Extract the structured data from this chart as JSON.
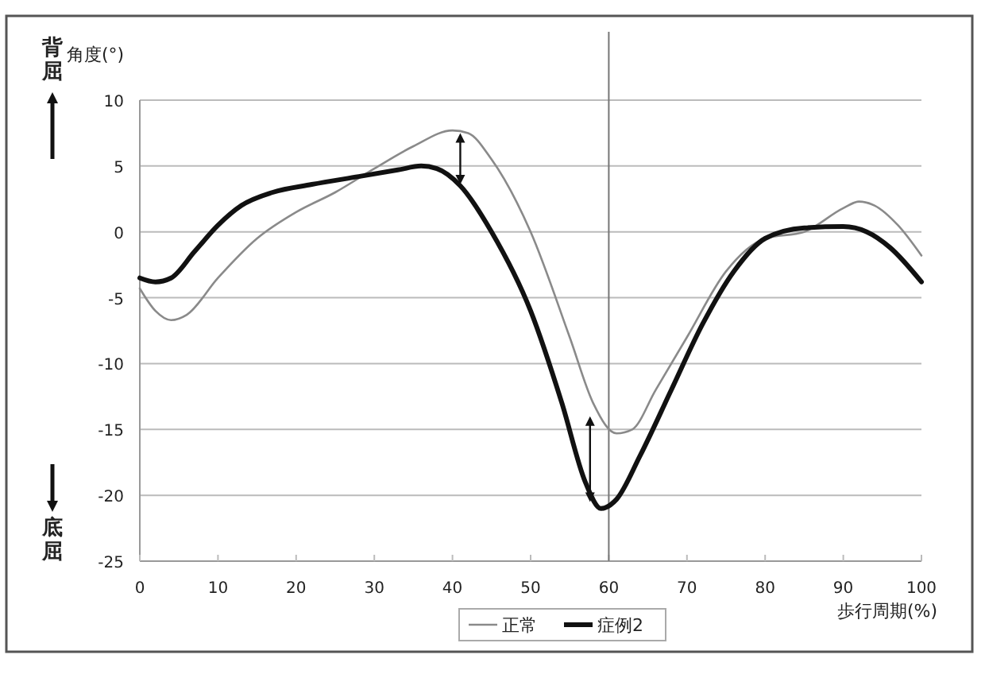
{
  "chart_data": {
    "type": "line",
    "xlabel": "歩行周期(%)",
    "ylabel": "角度(°)",
    "xlim": [
      0,
      100
    ],
    "xticks": [
      0,
      10,
      20,
      30,
      40,
      50,
      60,
      70,
      80,
      90,
      100
    ],
    "ylim": [
      -25,
      10
    ],
    "yticks": [
      -25,
      -20,
      -15,
      -10,
      -5,
      0,
      5,
      10
    ],
    "grid": "y",
    "legend": "bottom",
    "marker": "none",
    "line_style": "solid",
    "ref_lines": [
      {
        "axis": "x",
        "value": 60,
        "color": "#777777"
      }
    ],
    "annotations": [
      "背屈",
      "底屈"
    ],
    "series": [
      {
        "name": "正常",
        "color": "#8a8a8a",
        "x": [
          0,
          2,
          4,
          6,
          10,
          15,
          20,
          25,
          30,
          35,
          40,
          42,
          45,
          50,
          55,
          58,
          61,
          63,
          66,
          70,
          75,
          80,
          85,
          90,
          92,
          94,
          97,
          100
        ],
        "values": [
          -4.3,
          -6,
          -6.7,
          -6.3,
          -3.5,
          -0.5,
          1.5,
          3,
          4.8,
          6.5,
          7.7,
          7.5,
          5.5,
          0,
          -8,
          -13,
          -15.3,
          -15,
          -12,
          -8,
          -3,
          -0.5,
          0,
          1.8,
          2.3,
          2,
          0.5,
          -1.8
        ]
      },
      {
        "name": "症例2",
        "color": "#111111",
        "x": [
          0,
          2,
          4,
          7,
          10,
          13,
          17,
          22,
          28,
          33,
          36,
          38,
          41,
          45,
          50,
          54,
          57,
          59,
          61,
          64,
          68,
          72,
          76,
          80,
          85,
          90,
          93,
          96,
          100
        ],
        "values": [
          -3.5,
          -3.8,
          -3.5,
          -1.5,
          0.5,
          2,
          3,
          3.6,
          4.2,
          4.7,
          5,
          4.8,
          3.5,
          0,
          -6,
          -13,
          -19,
          -21,
          -20.3,
          -17,
          -12,
          -7,
          -3,
          -0.5,
          0.3,
          0.4,
          0,
          -1.2,
          -3.8
        ]
      }
    ]
  }
}
